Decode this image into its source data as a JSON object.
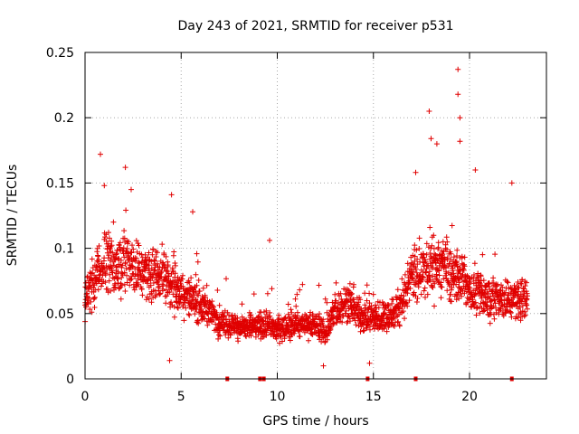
{
  "chart_data": {
    "type": "scatter",
    "title": "Day 243 of 2021, SRMTID for receiver p531",
    "xlabel": "GPS time / hours",
    "ylabel": "SRMTID / TECUs",
    "xlim": [
      0,
      24
    ],
    "ylim": [
      0,
      0.25
    ],
    "x_ticks": [
      "0",
      "5",
      "10",
      "15",
      "20"
    ],
    "x_tick_values": [
      0,
      5,
      10,
      15,
      20
    ],
    "y_ticks": [
      "0",
      "0.05",
      "0.1",
      "0.15",
      "0.2",
      "0.25"
    ],
    "y_tick_values": [
      0,
      0.05,
      0.1,
      0.15,
      0.2,
      0.25
    ],
    "grid": true,
    "marker": "plus",
    "series_color": "#e00000",
    "series": [
      {
        "name": "SRMTID",
        "trend": [
          [
            0.0,
            0.062
          ],
          [
            0.5,
            0.072
          ],
          [
            1.0,
            0.09
          ],
          [
            1.5,
            0.085
          ],
          [
            2.0,
            0.09
          ],
          [
            2.5,
            0.085
          ],
          [
            3.0,
            0.082
          ],
          [
            3.5,
            0.08
          ],
          [
            4.0,
            0.078
          ],
          [
            4.5,
            0.072
          ],
          [
            5.0,
            0.066
          ],
          [
            5.5,
            0.062
          ],
          [
            6.0,
            0.058
          ],
          [
            6.5,
            0.05
          ],
          [
            7.0,
            0.044
          ],
          [
            7.5,
            0.042
          ],
          [
            8.0,
            0.04
          ],
          [
            8.5,
            0.04
          ],
          [
            9.0,
            0.04
          ],
          [
            9.5,
            0.04
          ],
          [
            10.0,
            0.038
          ],
          [
            10.5,
            0.04
          ],
          [
            11.0,
            0.042
          ],
          [
            11.5,
            0.042
          ],
          [
            12.0,
            0.04
          ],
          [
            12.5,
            0.036
          ],
          [
            13.0,
            0.05
          ],
          [
            13.5,
            0.058
          ],
          [
            14.0,
            0.055
          ],
          [
            14.5,
            0.048
          ],
          [
            15.0,
            0.046
          ],
          [
            15.5,
            0.048
          ],
          [
            16.0,
            0.05
          ],
          [
            16.5,
            0.06
          ],
          [
            17.0,
            0.078
          ],
          [
            17.5,
            0.082
          ],
          [
            18.0,
            0.085
          ],
          [
            18.5,
            0.085
          ],
          [
            19.0,
            0.082
          ],
          [
            19.5,
            0.078
          ],
          [
            20.0,
            0.07
          ],
          [
            20.5,
            0.066
          ],
          [
            21.0,
            0.062
          ],
          [
            21.5,
            0.06
          ],
          [
            22.0,
            0.06
          ],
          [
            22.5,
            0.062
          ],
          [
            23.0,
            0.06
          ]
        ],
        "peaks": [
          [
            0.8,
            0.172
          ],
          [
            1.0,
            0.148
          ],
          [
            2.1,
            0.162
          ],
          [
            2.4,
            0.145
          ],
          [
            4.5,
            0.141
          ],
          [
            5.6,
            0.128
          ],
          [
            9.6,
            0.106
          ],
          [
            17.2,
            0.158
          ],
          [
            17.9,
            0.205
          ],
          [
            18.0,
            0.184
          ],
          [
            18.3,
            0.18
          ],
          [
            19.4,
            0.237
          ],
          [
            19.4,
            0.218
          ],
          [
            19.5,
            0.2
          ],
          [
            19.5,
            0.182
          ],
          [
            20.3,
            0.16
          ],
          [
            22.2,
            0.15
          ],
          [
            4.4,
            0.014
          ],
          [
            12.4,
            0.01
          ],
          [
            14.8,
            0.012
          ]
        ],
        "sample_interval_hours": 0.025,
        "spread": 0.022
      }
    ],
    "markers_on_axis": [
      7.4,
      9.1,
      9.3,
      14.7,
      17.2,
      22.2
    ]
  }
}
